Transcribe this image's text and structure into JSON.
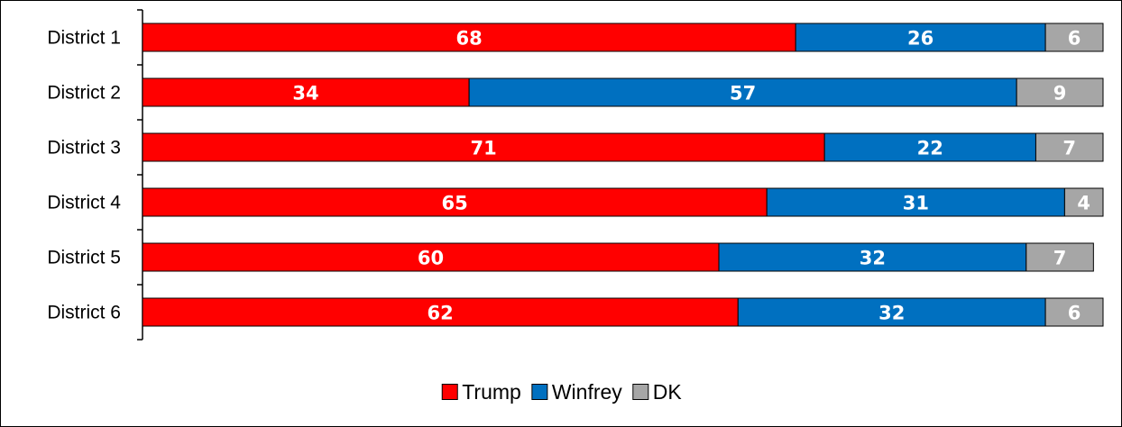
{
  "chart_data": {
    "type": "bar",
    "orientation": "horizontal",
    "stacked": true,
    "categories": [
      "District 1",
      "District 2",
      "District 3",
      "District 4",
      "District 5",
      "District 6"
    ],
    "series": [
      {
        "name": "Trump",
        "color": "#ff0000",
        "values": [
          68,
          34,
          71,
          65,
          60,
          62
        ]
      },
      {
        "name": "Winfrey",
        "color": "#0070c0",
        "values": [
          26,
          57,
          22,
          31,
          32,
          32
        ]
      },
      {
        "name": "DK",
        "color": "#a6a6a6",
        "values": [
          6,
          9,
          7,
          4,
          7,
          6
        ]
      }
    ],
    "xlim": [
      0,
      100
    ],
    "grid": false,
    "legend": "bottom-center",
    "data_labels": true
  }
}
